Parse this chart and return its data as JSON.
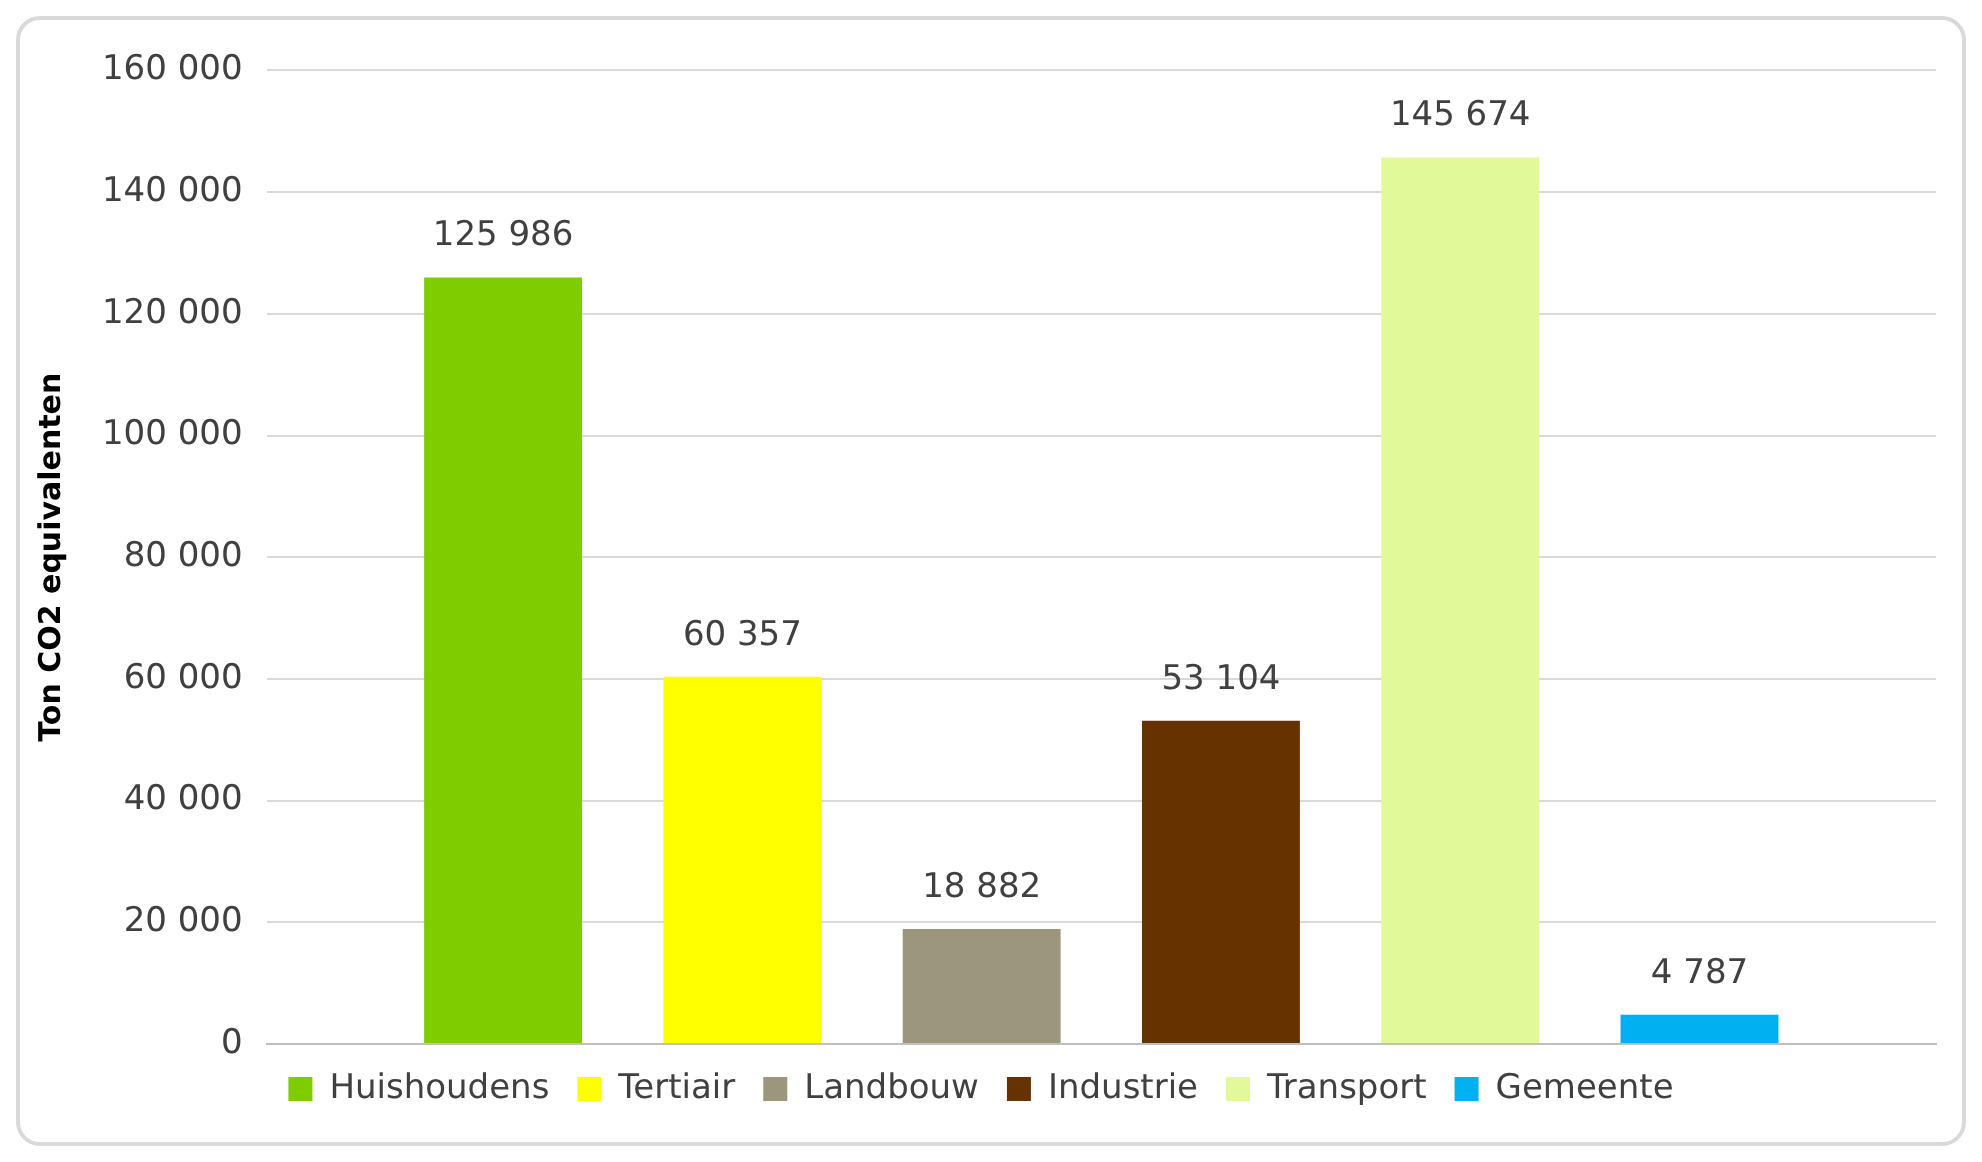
{
  "chart_data": {
    "type": "bar",
    "ylabel": "Ton CO2 equivalenten",
    "categories": [
      null
    ],
    "series": [
      {
        "name": "Huishoudens",
        "color": "#7fcc00",
        "values": [
          125986
        ],
        "value_labels": [
          "125 986"
        ]
      },
      {
        "name": "Tertiair",
        "color": "#ffff00",
        "values": [
          60357
        ],
        "value_labels": [
          "60 357"
        ]
      },
      {
        "name": "Landbouw",
        "color": "#9b967c",
        "values": [
          18882
        ],
        "value_labels": [
          "18 882"
        ]
      },
      {
        "name": "Industrie",
        "color": "#663300",
        "values": [
          53104
        ],
        "value_labels": [
          "53 104"
        ]
      },
      {
        "name": "Transport",
        "color": "#e2f99a",
        "values": [
          145674
        ],
        "value_labels": [
          "145 674"
        ]
      },
      {
        "name": "Gemeente",
        "color": "#00b0f0",
        "values": [
          4787
        ],
        "value_labels": [
          "4 787"
        ]
      }
    ],
    "ylim": [
      0,
      160000
    ],
    "yticks": [
      {
        "value": 0,
        "label": "0"
      },
      {
        "value": 20000,
        "label": "20 000"
      },
      {
        "value": 40000,
        "label": "40 000"
      },
      {
        "value": 60000,
        "label": "60 000"
      },
      {
        "value": 80000,
        "label": "80 000"
      },
      {
        "value": 100000,
        "label": "100 000"
      },
      {
        "value": 120000,
        "label": "120 000"
      },
      {
        "value": 140000,
        "label": "140 000"
      },
      {
        "value": 160000,
        "label": "160 000"
      }
    ],
    "grid": "y",
    "legend": "bottom"
  }
}
